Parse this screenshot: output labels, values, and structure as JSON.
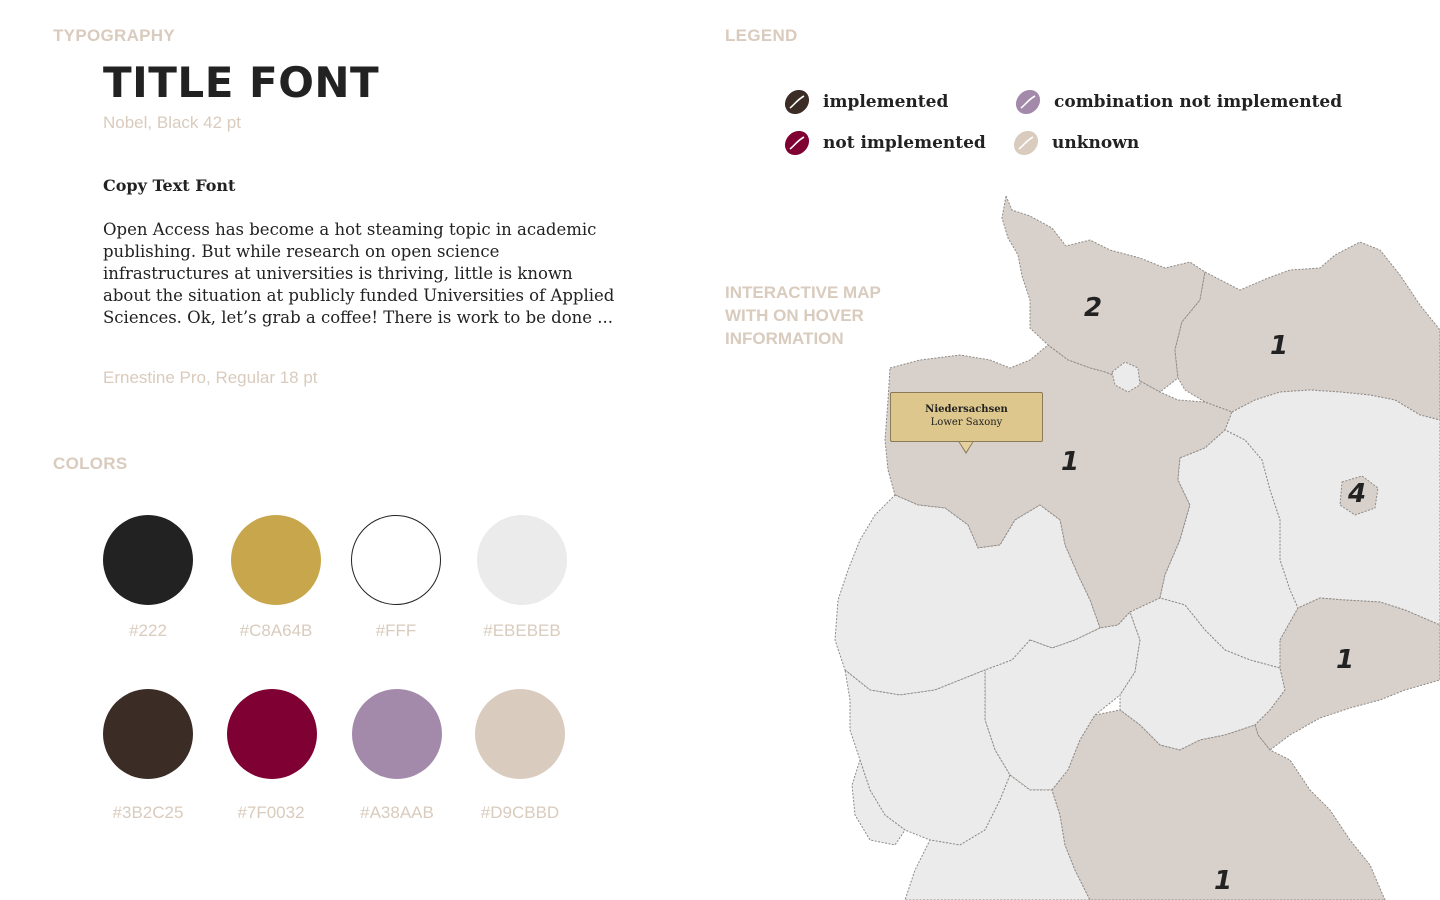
{
  "typography": {
    "section_label": "TYPOGRAPHY",
    "title_sample": "TITLE FONT",
    "title_caption": "Nobel, Black 42 pt",
    "copy_heading": "Copy Text Font",
    "copy_body": "Open Access has become a hot steaming topic in academic publishing. But while research on open science infrastructures at universities is thriving, little is known about the situation at publicly funded Universities of Applied Sciences. Ok, let’s grab a coffee! There is work to be done ...",
    "copy_caption": "Ernestine Pro, Regular 18 pt"
  },
  "colors": {
    "section_label": "COLORS",
    "swatches": [
      {
        "hex": "#222",
        "label": "#222"
      },
      {
        "hex": "#C8A64B",
        "label": "#C8A64B"
      },
      {
        "hex": "#FFF",
        "label": "#FFF"
      },
      {
        "hex": "#EBEBEB",
        "label": "#EBEBEB"
      },
      {
        "hex": "#3B2C25",
        "label": "#3B2C25"
      },
      {
        "hex": "#7F0032",
        "label": "#7F0032"
      },
      {
        "hex": "#A38AAB",
        "label": "#A38AAB"
      },
      {
        "hex": "#D9CBBD",
        "label": "#D9CBBD"
      }
    ]
  },
  "legend": {
    "section_label": "LEGEND",
    "items": [
      {
        "label": "implemented",
        "color": "#3B2C25",
        "icon": "coffee-bean-icon"
      },
      {
        "label": "combination not implemented",
        "color": "#A38AAB",
        "icon": "coffee-bean-icon"
      },
      {
        "label": "not implemented",
        "color": "#7F0032",
        "icon": "coffee-bean-icon"
      },
      {
        "label": "unknown",
        "color": "#D9CBBD",
        "icon": "coffee-bean-icon"
      }
    ]
  },
  "map": {
    "label_lines": [
      "INTERACTIVE MAP",
      "WITH ON HOVER",
      "INFORMATION"
    ],
    "region_counts": [
      "2",
      "1",
      "1",
      "4",
      "1",
      "1"
    ],
    "tooltip": {
      "title": "Niedersachsen",
      "subtitle": "Lower Saxony"
    }
  }
}
